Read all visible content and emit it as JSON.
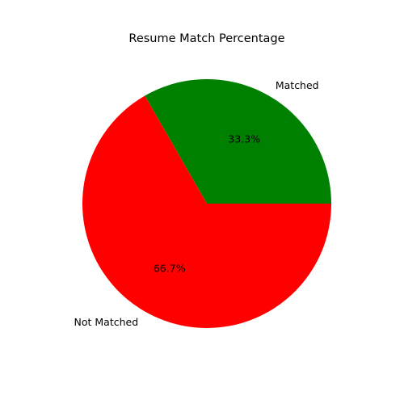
{
  "chart_data": {
    "type": "pie",
    "title": "Resume Match Percentage",
    "categories": [
      "Matched",
      "Not Matched"
    ],
    "values": [
      33.3,
      66.7
    ],
    "percent_labels": [
      "33.3%",
      "66.7%"
    ],
    "colors": [
      "#008000",
      "#ff0000"
    ],
    "start_angle_deg": 0,
    "direction": "counterclockwise",
    "legend": "none"
  }
}
